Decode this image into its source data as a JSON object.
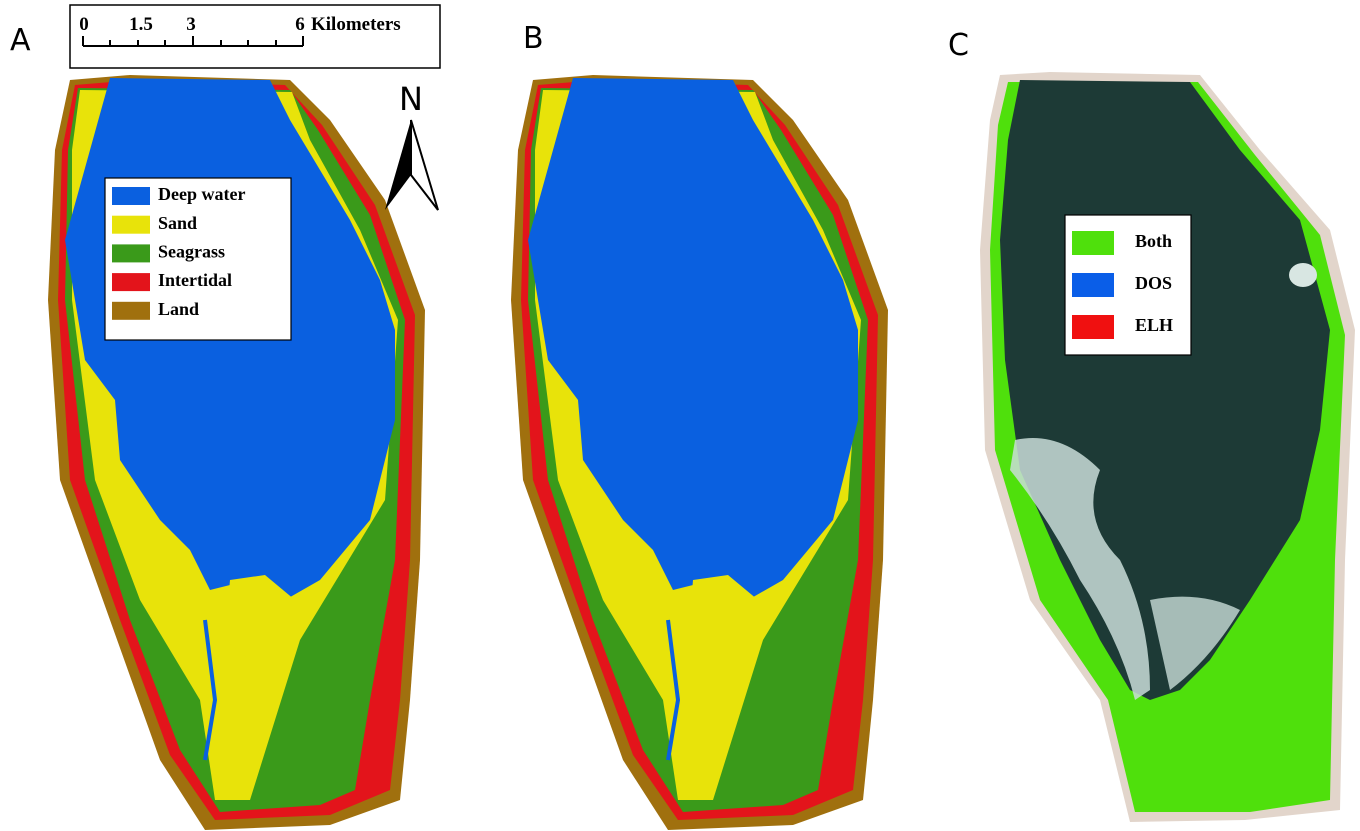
{
  "panels": [
    {
      "label": "A"
    },
    {
      "label": "B"
    },
    {
      "label": "C"
    }
  ],
  "scale_bar": {
    "ticks": [
      "0",
      "1.5",
      "3",
      "6"
    ],
    "unit": "Kilometers"
  },
  "north_arrow": {
    "label": "N"
  },
  "legend_a": {
    "items": [
      {
        "label": "Deep water",
        "color": "#0a60e0"
      },
      {
        "label": "Sand",
        "color": "#e8e30a"
      },
      {
        "label": "Seagrass",
        "color": "#3a9a1a"
      },
      {
        "label": "Intertidal",
        "color": "#e3141b"
      },
      {
        "label": "Land",
        "color": "#a0700e"
      }
    ]
  },
  "legend_c": {
    "items": [
      {
        "label": "Both",
        "color": "#4fe00c"
      },
      {
        "label": "DOS",
        "color": "#0a5ee8"
      },
      {
        "label": "ELH",
        "color": "#f01010"
      }
    ]
  }
}
